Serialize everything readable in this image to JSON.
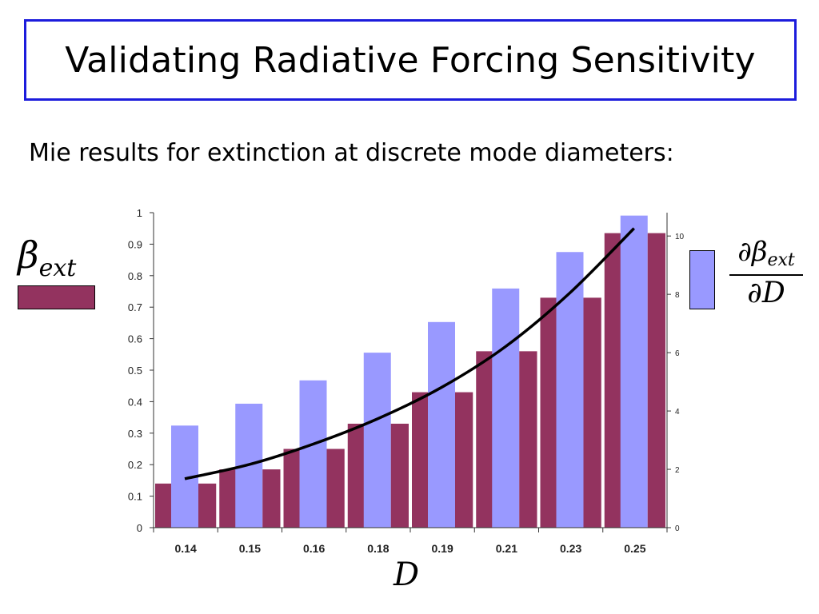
{
  "title": "Validating Radiative Forcing Sensitivity",
  "subtitle": "Mie results for extinction at discrete mode diameters:",
  "legend": {
    "left_label_base": "β",
    "left_label_sub": "ext",
    "right_num_base": "∂β",
    "right_num_sub": "ext",
    "right_den": "∂D"
  },
  "colors": {
    "beta_ext": "#93335f",
    "dbeta_dD": "#9999ff",
    "curve": "#000000",
    "title_border": "#1c1cdc"
  },
  "chart_data": {
    "type": "bar",
    "xlabel": "D",
    "categories": [
      "0.14",
      "0.15",
      "0.16",
      "0.18",
      "0.19",
      "0.21",
      "0.23",
      "0.25"
    ],
    "y_left_ticks": [
      "0",
      "0.1",
      "0.2",
      "0.3",
      "0.4",
      "0.5",
      "0.6",
      "0.7",
      "0.8",
      "0.9",
      "1"
    ],
    "y_right_ticks": [
      "0",
      "2",
      "4",
      "6",
      "8",
      "10"
    ],
    "ylim_left": [
      0,
      1
    ],
    "ylim_right": [
      0,
      10.8
    ],
    "series": [
      {
        "key": "beta_ext",
        "axis": "left",
        "values": [
          0.14,
          0.185,
          0.25,
          0.33,
          0.43,
          0.56,
          0.73,
          0.935
        ]
      },
      {
        "key": "dbeta_dD",
        "axis": "right",
        "values": [
          3.5,
          4.25,
          5.05,
          6.0,
          7.05,
          8.2,
          9.45,
          10.7
        ]
      }
    ],
    "curve": {
      "axis": "left",
      "x_index": [
        0,
        1,
        2,
        3,
        4,
        5,
        6,
        7
      ],
      "values": [
        0.14,
        0.185,
        0.25,
        0.33,
        0.43,
        0.56,
        0.73,
        0.935
      ]
    }
  }
}
